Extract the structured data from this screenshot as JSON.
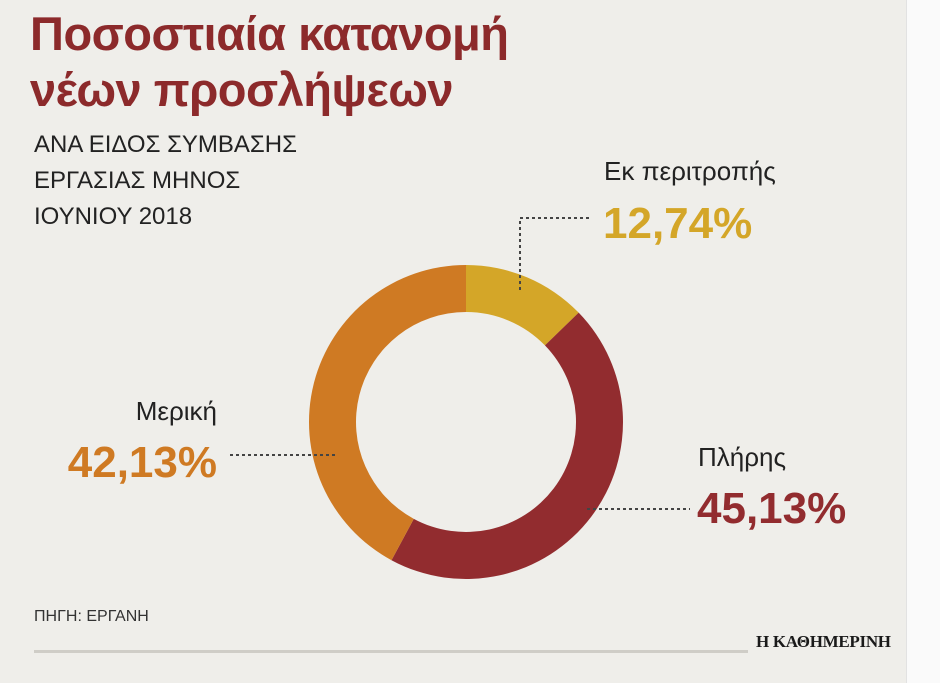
{
  "title_line1": "Ποσοστιαία κατανομή",
  "title_line2": "νέων προσλήψεων",
  "subtitle_line1": "ΑΝΑ ΕΙΔΟΣ ΣΥΜΒΑΣΗΣ",
  "subtitle_line2": "ΕΡΓΑΣΙΑΣ ΜΗΝΟΣ",
  "subtitle_line3": "ΙΟΥΝΙΟΥ 2018",
  "source": "ΠΗΓΗ: ΕΡΓΑΝΗ",
  "publisher": "Η ΚΑΘΗΜΕΡΙΝΗ",
  "colors": {
    "title": "#8c2a2b",
    "background": "#efeeea",
    "ek_peritropis": "#d4a628",
    "pliris": "#922c2f",
    "meriki": "#cf7a23"
  },
  "chart_data": {
    "type": "pie",
    "style": "donut",
    "slices": [
      {
        "label": "Εκ περιτροπής",
        "value": 12.74,
        "value_label": "12,74%",
        "color": "#d4a628"
      },
      {
        "label": "Πλήρης",
        "value": 45.13,
        "value_label": "45,13%",
        "color": "#922c2f"
      },
      {
        "label": "Μερική",
        "value": 42.13,
        "value_label": "42,13%",
        "color": "#cf7a23"
      }
    ]
  }
}
